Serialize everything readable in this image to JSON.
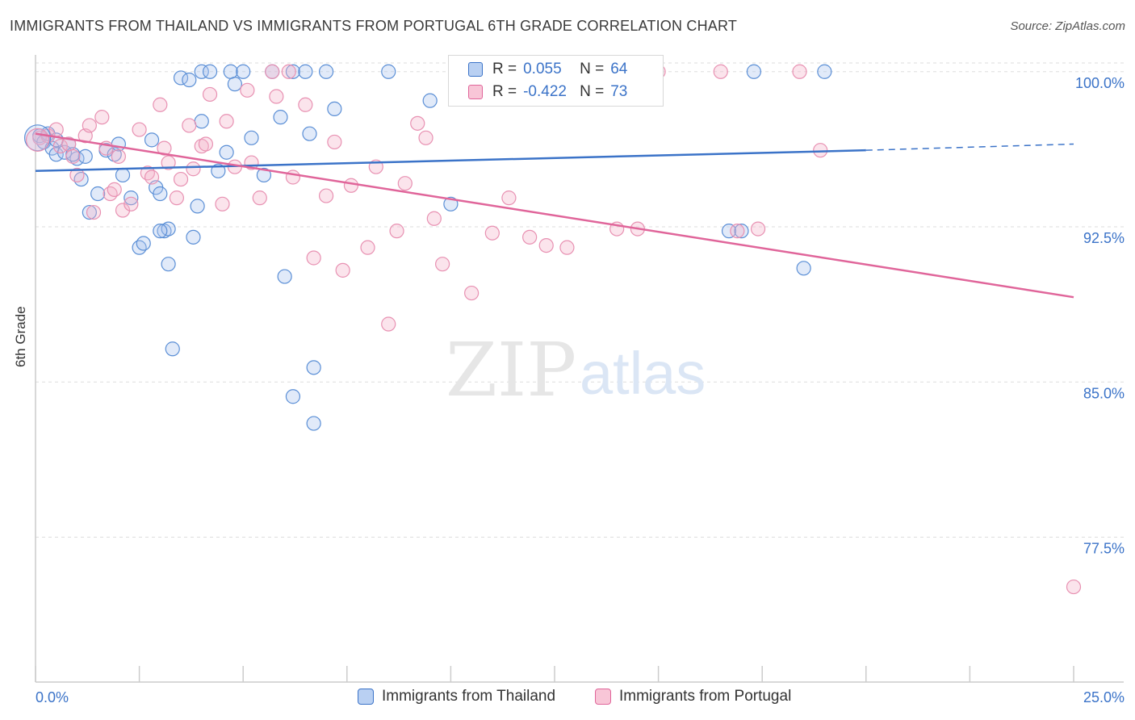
{
  "title": "IMMIGRANTS FROM THAILAND VS IMMIGRANTS FROM PORTUGAL 6TH GRADE CORRELATION CHART",
  "source": "Source: ZipAtlas.com",
  "watermark": {
    "zip": "ZIP",
    "atlas": "atlas"
  },
  "colors": {
    "blue": "#3b73c8",
    "blue_fill": "#a9c4ee",
    "pink": "#e0659a",
    "pink_fill": "#f4b3c9",
    "grid": "#dddddd",
    "axis_text": "#3b73c8"
  },
  "legend": {
    "rows": [
      {
        "r_label": "R =",
        "r_value": "0.055",
        "n_label": "N =",
        "n_value": "64"
      },
      {
        "r_label": "R =",
        "r_value": "-0.422",
        "n_label": "N =",
        "n_value": "73"
      }
    ]
  },
  "chart_data": {
    "type": "scatter",
    "title": "IMMIGRANTS FROM THAILAND VS IMMIGRANTS FROM PORTUGAL 6TH GRADE CORRELATION CHART",
    "xlabel": "",
    "ylabel": "6th Grade",
    "xlim": [
      0,
      25
    ],
    "ylim": [
      70.5,
      101.2
    ],
    "x_tick_labels": [
      "0.0%",
      "25.0%"
    ],
    "y_ticks": [
      77.5,
      85.0,
      92.5,
      100.0
    ],
    "y_tick_labels": [
      "77.5%",
      "85.0%",
      "92.5%",
      "100.0%"
    ],
    "grid": true,
    "series": [
      {
        "name": "Immigrants from Thailand",
        "color": "#3b73c8",
        "trend": {
          "x0": 0.0,
          "y0": 95.2,
          "x1": 20.0,
          "y1": 96.2,
          "x_dash_end": 25.0,
          "y_dash_end": 96.5
        },
        "points": [
          [
            0.1,
            96.9
          ],
          [
            0.2,
            96.6
          ],
          [
            0.3,
            97.0
          ],
          [
            0.4,
            96.3
          ],
          [
            0.5,
            96.0
          ],
          [
            0.7,
            96.1
          ],
          [
            0.8,
            96.5
          ],
          [
            1.0,
            95.8
          ],
          [
            1.2,
            95.9
          ],
          [
            1.3,
            93.2
          ],
          [
            1.5,
            94.1
          ],
          [
            1.7,
            96.2
          ],
          [
            1.9,
            96.0
          ],
          [
            2.0,
            96.5
          ],
          [
            2.1,
            95.0
          ],
          [
            2.3,
            93.9
          ],
          [
            2.5,
            91.5
          ],
          [
            2.6,
            91.7
          ],
          [
            2.8,
            96.7
          ],
          [
            2.9,
            94.4
          ],
          [
            3.0,
            94.1
          ],
          [
            3.1,
            92.3
          ],
          [
            3.2,
            92.4
          ],
          [
            3.5,
            99.7
          ],
          [
            3.7,
            99.6
          ],
          [
            3.8,
            92.0
          ],
          [
            3.9,
            93.5
          ],
          [
            4.0,
            97.6
          ],
          [
            4.0,
            100.0
          ],
          [
            4.2,
            100.0
          ],
          [
            4.4,
            95.2
          ],
          [
            4.7,
            100.0
          ],
          [
            4.8,
            99.4
          ],
          [
            4.6,
            96.1
          ],
          [
            5.0,
            100.0
          ],
          [
            5.2,
            96.8
          ],
          [
            5.5,
            95.0
          ],
          [
            5.7,
            100.0
          ],
          [
            5.9,
            97.8
          ],
          [
            6.2,
            100.0
          ],
          [
            6.5,
            100.0
          ],
          [
            6.6,
            97.0
          ],
          [
            7.0,
            100.0
          ],
          [
            7.2,
            98.2
          ],
          [
            8.5,
            100.0
          ],
          [
            9.5,
            98.6
          ],
          [
            10.0,
            93.6
          ],
          [
            12.2,
            100.0
          ],
          [
            12.5,
            100.0
          ],
          [
            16.7,
            92.3
          ],
          [
            17.0,
            92.3
          ],
          [
            19.0,
            100.0
          ],
          [
            17.3,
            100.0
          ],
          [
            18.5,
            90.5
          ],
          [
            6.0,
            90.1
          ],
          [
            3.3,
            86.6
          ],
          [
            6.7,
            85.7
          ],
          [
            6.2,
            84.3
          ],
          [
            6.7,
            83.0
          ],
          [
            3.0,
            92.3
          ],
          [
            3.2,
            90.7
          ],
          [
            1.1,
            94.8
          ],
          [
            0.5,
            96.7
          ],
          [
            0.9,
            96.0
          ]
        ]
      },
      {
        "name": "Immigrants from Portugal",
        "color": "#e0659a",
        "trend": {
          "x0": 0.0,
          "y0": 97.0,
          "x1": 25.0,
          "y1": 89.1
        },
        "points": [
          [
            0.1,
            96.8
          ],
          [
            0.3,
            96.9
          ],
          [
            0.5,
            97.2
          ],
          [
            0.6,
            96.4
          ],
          [
            0.8,
            96.5
          ],
          [
            1.0,
            95.0
          ],
          [
            1.2,
            96.9
          ],
          [
            1.4,
            93.2
          ],
          [
            1.6,
            97.8
          ],
          [
            1.7,
            96.3
          ],
          [
            1.8,
            94.1
          ],
          [
            1.9,
            94.3
          ],
          [
            2.1,
            93.3
          ],
          [
            2.3,
            93.6
          ],
          [
            2.5,
            97.2
          ],
          [
            2.7,
            95.1
          ],
          [
            2.8,
            94.9
          ],
          [
            3.0,
            98.4
          ],
          [
            3.1,
            96.3
          ],
          [
            3.2,
            95.6
          ],
          [
            3.4,
            93.9
          ],
          [
            3.5,
            94.8
          ],
          [
            3.7,
            97.4
          ],
          [
            3.8,
            95.3
          ],
          [
            4.0,
            96.4
          ],
          [
            4.1,
            96.5
          ],
          [
            4.2,
            98.9
          ],
          [
            4.5,
            93.6
          ],
          [
            4.6,
            97.6
          ],
          [
            4.8,
            95.4
          ],
          [
            5.1,
            99.1
          ],
          [
            5.2,
            95.6
          ],
          [
            5.4,
            93.9
          ],
          [
            5.7,
            100.0
          ],
          [
            5.8,
            98.8
          ],
          [
            6.1,
            100.0
          ],
          [
            6.2,
            94.9
          ],
          [
            6.5,
            98.4
          ],
          [
            6.7,
            91.0
          ],
          [
            7.0,
            94.0
          ],
          [
            7.2,
            96.6
          ],
          [
            7.4,
            90.4
          ],
          [
            7.6,
            94.5
          ],
          [
            8.0,
            91.5
          ],
          [
            8.2,
            95.4
          ],
          [
            8.5,
            87.8
          ],
          [
            8.7,
            92.3
          ],
          [
            8.9,
            94.6
          ],
          [
            9.2,
            97.5
          ],
          [
            9.4,
            96.8
          ],
          [
            9.6,
            92.9
          ],
          [
            9.8,
            90.7
          ],
          [
            10.5,
            89.3
          ],
          [
            11.0,
            92.2
          ],
          [
            11.4,
            93.9
          ],
          [
            11.9,
            92.0
          ],
          [
            12.3,
            91.6
          ],
          [
            12.6,
            100.0
          ],
          [
            12.8,
            91.5
          ],
          [
            13.0,
            100.0
          ],
          [
            14.0,
            92.4
          ],
          [
            14.5,
            92.4
          ],
          [
            14.8,
            100.0
          ],
          [
            15.0,
            100.0
          ],
          [
            16.5,
            100.0
          ],
          [
            16.9,
            92.3
          ],
          [
            17.4,
            92.4
          ],
          [
            18.4,
            100.0
          ],
          [
            18.9,
            96.2
          ],
          [
            25.0,
            75.1
          ],
          [
            1.3,
            97.4
          ],
          [
            2.0,
            95.9
          ],
          [
            0.9,
            95.9
          ]
        ]
      }
    ]
  }
}
